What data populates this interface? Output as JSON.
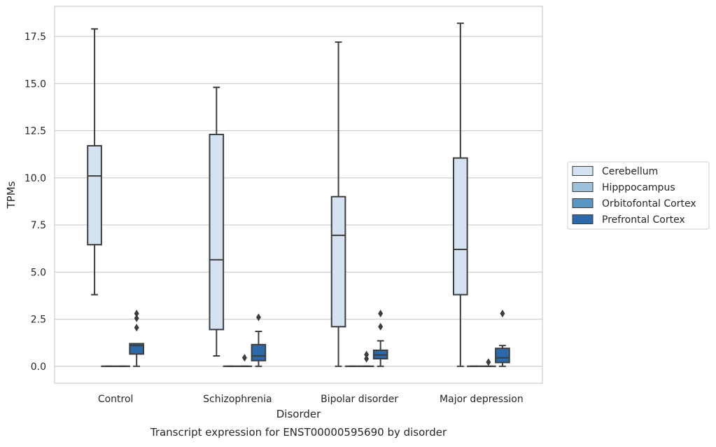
{
  "chart_data": {
    "type": "box",
    "title": "Transcript expression for ENST00000595690 by disorder",
    "xlabel": "Disorder",
    "ylabel": "TPMs",
    "ylim": [
      -0.9,
      19.1
    ],
    "yticks": [
      0.0,
      2.5,
      5.0,
      7.5,
      10.0,
      12.5,
      15.0,
      17.5
    ],
    "ytick_labels": [
      "0.0",
      "2.5",
      "5.0",
      "7.5",
      "10.0",
      "12.5",
      "15.0",
      "17.5"
    ],
    "grid": "horizontal",
    "legend_position": "right",
    "categories": [
      "Control",
      "Schizophrenia",
      "Bipolar disorder",
      "Major depression"
    ],
    "series": [
      {
        "name": "Cerebellum",
        "color": "#d4e2f1",
        "boxes": [
          {
            "whislo": 3.8,
            "q1": 6.45,
            "med": 10.1,
            "q3": 11.7,
            "whishi": 17.9,
            "fliers": []
          },
          {
            "whislo": 0.55,
            "q1": 1.95,
            "med": 5.65,
            "q3": 12.3,
            "whishi": 14.8,
            "fliers": []
          },
          {
            "whislo": 0.0,
            "q1": 2.1,
            "med": 6.95,
            "q3": 9.0,
            "whishi": 17.2,
            "fliers": []
          },
          {
            "whislo": 0.0,
            "q1": 3.8,
            "med": 6.2,
            "q3": 11.05,
            "whishi": 18.2,
            "fliers": []
          }
        ]
      },
      {
        "name": "Hipppocampus",
        "color": "#9dc0db",
        "boxes": [
          {
            "whislo": 0.0,
            "q1": 0.0,
            "med": 0.0,
            "q3": 0.0,
            "whishi": 0.0,
            "fliers": []
          },
          {
            "whislo": 0.0,
            "q1": 0.0,
            "med": 0.0,
            "q3": 0.0,
            "whishi": 0.0,
            "fliers": []
          },
          {
            "whislo": 0.0,
            "q1": 0.0,
            "med": 0.0,
            "q3": 0.0,
            "whishi": 0.0,
            "fliers": []
          },
          {
            "whislo": 0.0,
            "q1": 0.0,
            "med": 0.0,
            "q3": 0.0,
            "whishi": 0.0,
            "fliers": []
          }
        ]
      },
      {
        "name": "Orbitofontal Cortex",
        "color": "#5a96c4",
        "boxes": [
          {
            "whislo": 0.0,
            "q1": 0.0,
            "med": 0.0,
            "q3": 0.0,
            "whishi": 0.0,
            "fliers": []
          },
          {
            "whislo": 0.0,
            "q1": 0.0,
            "med": 0.0,
            "q3": 0.0,
            "whishi": 0.0,
            "fliers": [
              0.45
            ]
          },
          {
            "whislo": 0.0,
            "q1": 0.0,
            "med": 0.0,
            "q3": 0.0,
            "whishi": 0.0,
            "fliers": [
              0.4,
              0.62
            ]
          },
          {
            "whislo": 0.0,
            "q1": 0.0,
            "med": 0.0,
            "q3": 0.0,
            "whishi": 0.0,
            "fliers": [
              0.22
            ]
          }
        ]
      },
      {
        "name": "Prefrontal Cortex",
        "color": "#2c69a8",
        "boxes": [
          {
            "whislo": 0.0,
            "q1": 0.65,
            "med": 1.1,
            "q3": 1.2,
            "whishi": 1.2,
            "fliers": [
              2.05,
              2.55,
              2.8
            ]
          },
          {
            "whislo": 0.0,
            "q1": 0.3,
            "med": 0.55,
            "q3": 1.15,
            "whishi": 1.85,
            "fliers": [
              2.6
            ]
          },
          {
            "whislo": 0.0,
            "q1": 0.4,
            "med": 0.6,
            "q3": 0.85,
            "whishi": 1.35,
            "fliers": [
              2.1,
              2.8
            ]
          },
          {
            "whislo": 0.0,
            "q1": 0.2,
            "med": 0.45,
            "q3": 0.95,
            "whishi": 1.1,
            "fliers": [
              2.8
            ]
          }
        ]
      }
    ]
  }
}
